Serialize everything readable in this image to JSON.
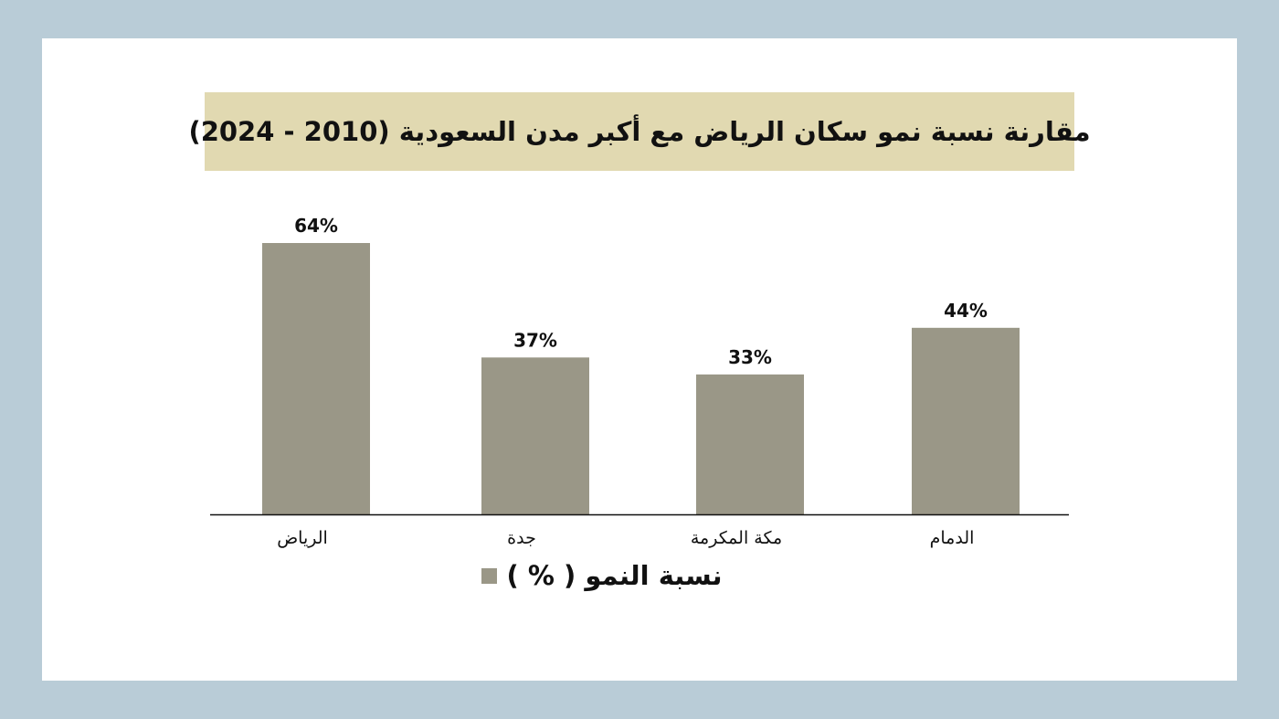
{
  "colors": {
    "background": "#b9ccd7",
    "card": "#ffffff",
    "title_band": "#e1d9b1",
    "bar": "#9a9787",
    "axis": "#111111"
  },
  "chart_data": {
    "type": "bar",
    "title": "مقارنة نسبة نمو سكان الرياض مع أكبر مدن السعودية (2010 - 2024)",
    "categories": [
      "الرياض",
      "جدة",
      "مكة المكرمة",
      "الدمام"
    ],
    "series": [
      {
        "name": "نسبة النمو ( % )",
        "values": [
          64,
          37,
          33,
          44
        ],
        "data_labels": [
          "64%",
          "37%",
          "33%",
          "44%"
        ]
      }
    ],
    "xlabel": "",
    "ylabel": "",
    "ylim": [
      0,
      70
    ],
    "grid": false,
    "legend_position": "bottom-center"
  }
}
